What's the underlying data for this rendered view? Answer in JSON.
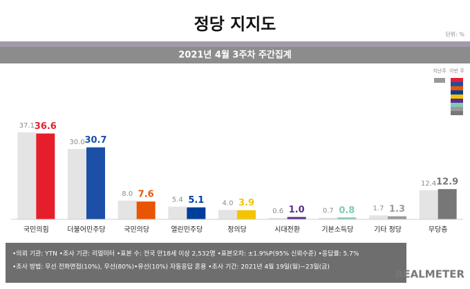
{
  "chart_data": {
    "type": "bar",
    "title": "정당 지지도",
    "subtitle": "2021년 4월 3주차 주간집계",
    "unit": "단위: %",
    "categories": [
      "국민의힘",
      "더불어민주당",
      "국민의당",
      "열린민주당",
      "정의당",
      "시대전환",
      "기본소득당",
      "기타 정당",
      "무당층"
    ],
    "series": [
      {
        "name": "지난주",
        "color": "#e4e4e4",
        "label_color": "#8a8a8a",
        "values": [
          37.1,
          30,
          8,
          5.4,
          4,
          0.6,
          0.7,
          1.7,
          12.4
        ],
        "value_labels": [
          "37.1",
          "30.0",
          "8.0",
          "5.4",
          "4.0",
          "0.6",
          "0.7",
          "1.7",
          "12.4"
        ]
      },
      {
        "name": "이번 주",
        "colors": [
          "#e61e2b",
          "#1b4fa8",
          "#ea5504",
          "#003e9b",
          "#f5c400",
          "#5a2d8c",
          "#82c8b4",
          "#9a9a9a",
          "#777777"
        ],
        "values": [
          36.6,
          30.7,
          7.6,
          5.1,
          3.9,
          1,
          0.8,
          1.3,
          12.9
        ],
        "value_labels": [
          "36.6",
          "30.7",
          "7.6",
          "5.1",
          "3.9",
          "1.0",
          "0.8",
          "1.3",
          "12.9"
        ]
      }
    ],
    "notes": [
      "•의뢰 기관: YTN  •조사 기관: 리얼미터  •표본 수: 전국 만18세 이상 2,532명  •표본오차: ±1.9%P(95% 신뢰수준)  •응답률: 5.7%",
      "•조사 방법: 무선 전화면접(10%), 무선(80%)•유선(10%) 자동응답 혼용  •조사 기간: 2021년 4월 19일(월)~23일(금)"
    ],
    "brand": "REALMETER"
  }
}
